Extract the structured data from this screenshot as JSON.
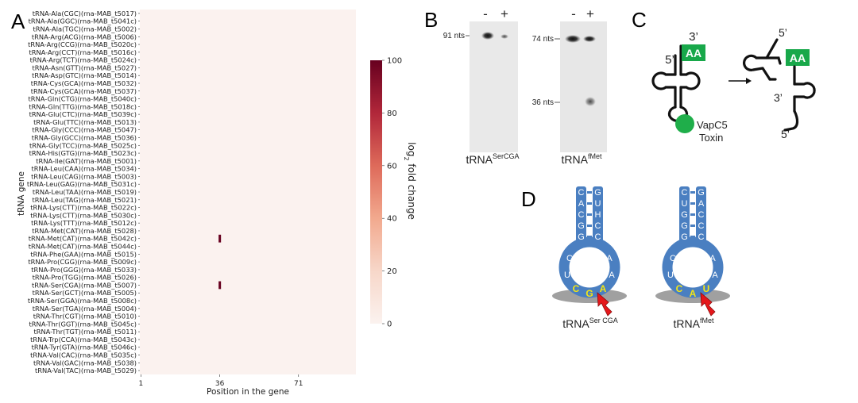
{
  "panels": {
    "a": "A",
    "b": "B",
    "c": "C",
    "d": "D"
  },
  "heatmap": {
    "ylabel": "tRNA gene",
    "xlabel": "Position in the gene",
    "xticks": [
      "1",
      "36",
      "71"
    ],
    "colorbar_label": "log₂ fold change",
    "colorbar_ticks": [
      "0",
      "20",
      "40",
      "60",
      "80",
      "100"
    ],
    "colors": {
      "low": "#fbf2ef",
      "high": "#67001f"
    }
  },
  "chart_data": {
    "type": "heatmap",
    "ylabel": "tRNA gene",
    "xlabel": "Position in the gene",
    "colorbar_label": "log2 fold change",
    "clim": [
      0,
      100
    ],
    "x_range": [
      1,
      96
    ],
    "x_ticks": [
      1,
      36,
      71
    ],
    "genes": [
      "tRNA-Ala(CGC)(rna-MAB_t5017)",
      "tRNA-Ala(GGC)(rna-MAB_t5041c)",
      "tRNA-Ala(TGC)(rna-MAB_t5002)",
      "tRNA-Arg(ACG)(rna-MAB_t5006)",
      "tRNA-Arg(CCG)(rna-MAB_t5020c)",
      "tRNA-Arg(CCT)(rna-MAB_t5016c)",
      "tRNA-Arg(TCT)(rna-MAB_t5024c)",
      "tRNA-Asn(GTT)(rna-MAB_t5027)",
      "tRNA-Asp(GTC)(rna-MAB_t5014)",
      "tRNA-Cys(GCA)(rna-MAB_t5032)",
      "tRNA-Cys(GCA)(rna-MAB_t5037)",
      "tRNA-Gln(CTG)(rna-MAB_t5040c)",
      "tRNA-Gln(TTG)(rna-MAB_t5018c)",
      "tRNA-Glu(CTC)(rna-MAB_t5039c)",
      "tRNA-Glu(TTC)(rna-MAB_t5013)",
      "tRNA-Gly(CCC)(rna-MAB_t5047)",
      "tRNA-Gly(GCC)(rna-MAB_t5036)",
      "tRNA-Gly(TCC)(rna-MAB_t5025c)",
      "tRNA-His(GTG)(rna-MAB_t5023c)",
      "tRNA-Ile(GAT)(rna-MAB_t5001)",
      "tRNA-Leu(CAA)(rna-MAB_t5034)",
      "tRNA-Leu(CAG)(rna-MAB_t5003)",
      "tRNA-Leu(GAG)(rna-MAB_t5031c)",
      "tRNA-Leu(TAA)(rna-MAB_t5019)",
      "tRNA-Leu(TAG)(rna-MAB_t5021)",
      "tRNA-Lys(CTT)(rna-MAB_t5022c)",
      "tRNA-Lys(CTT)(rna-MAB_t5030c)",
      "tRNA-Lys(TTT)(rna-MAB_t5012c)",
      "tRNA-Met(CAT)(rna-MAB_t5028)",
      "tRNA-Met(CAT)(rna-MAB_t5042c)",
      "tRNA-Met(CAT)(rna-MAB_t5044c)",
      "tRNA-Phe(GAA)(rna-MAB_t5015)",
      "tRNA-Pro(CGG)(rna-MAB_t5009c)",
      "tRNA-Pro(GGG)(rna-MAB_t5033)",
      "tRNA-Pro(TGG)(rna-MAB_t5026)",
      "tRNA-Ser(CGA)(rna-MAB_t5007)",
      "tRNA-Ser(GCT)(rna-MAB_t5005)",
      "tRNA-Ser(GGA)(rna-MAB_t5008c)",
      "tRNA-Ser(TGA)(rna-MAB_t5004)",
      "tRNA-Thr(CGT)(rna-MAB_t5010)",
      "tRNA-Thr(GGT)(rna-MAB_t5045c)",
      "tRNA-Thr(TGT)(rna-MAB_t5011)",
      "tRNA-Trp(CCA)(rna-MAB_t5043c)",
      "tRNA-Tyr(GTA)(rna-MAB_t5046c)",
      "tRNA-Val(CAC)(rna-MAB_t5035c)",
      "tRNA-Val(GAC)(rna-MAB_t5038)",
      "tRNA-Val(TAC)(rna-MAB_t5029)"
    ],
    "cells": [
      {
        "gene": "tRNA-Met(CAT)(rna-MAB_t5042c)",
        "position": 36,
        "value": 100
      },
      {
        "gene": "tRNA-Ser(CGA)(rna-MAB_t5007)",
        "position": 36,
        "value": 100
      }
    ],
    "default_value": 0
  },
  "blot": {
    "minus": "-",
    "plus": "+",
    "left_marker": "91 nts",
    "right_marker_top": "74 nts",
    "right_marker_bottom": "36 nts",
    "left_caption": "tRNA",
    "left_sup": "SerCGA",
    "right_caption": "tRNA",
    "right_sup": "fMet"
  },
  "schematic": {
    "three_prime": "3’",
    "five_prime": "5’",
    "aa": "AA",
    "toxin_line1": "VapC5",
    "toxin_line2": "Toxin",
    "colors": {
      "aa_box": "#18a84a",
      "toxin": "#1fae4a"
    }
  },
  "structures": {
    "colors": {
      "stem": "#4a7fc1",
      "highlight": "#f3e515",
      "arrow": "#e5171b",
      "shadow": "#a0a0a0"
    },
    "ser": {
      "stem_left": [
        "C",
        "A",
        "C",
        "G",
        "G"
      ],
      "stem_right": [
        "G",
        "U",
        "H",
        "C",
        "C"
      ],
      "loop_left": [
        "C",
        "U"
      ],
      "loop_right": [
        "A",
        "A"
      ],
      "anticodon": [
        "C",
        "G",
        "A"
      ],
      "caption": "tRNA",
      "caption_sup": "Ser CGA"
    },
    "met": {
      "stem_left": [
        "C",
        "U",
        "G",
        "G",
        "G"
      ],
      "stem_right": [
        "G",
        "A",
        "C",
        "C",
        "C"
      ],
      "loop_left": [
        "C",
        "U"
      ],
      "loop_right": [
        "A",
        "A"
      ],
      "anticodon": [
        "C",
        "A",
        "U"
      ],
      "caption": "tRNA",
      "caption_sup": "fMet"
    }
  }
}
